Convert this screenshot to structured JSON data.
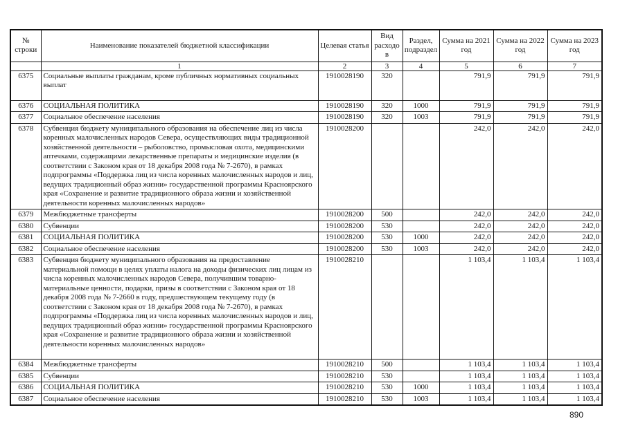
{
  "page": {
    "number": "890"
  },
  "table": {
    "headers": [
      "№ строки",
      "Наименование показателей бюджетной классификации",
      "Целевая статья",
      "Вид расходов",
      "Раздел, подраздел",
      "Сумма на 2021 год",
      "Сумма на 2022 год",
      "Сумма на 2023 год"
    ],
    "column_numbers": [
      "",
      "1",
      "2",
      "3",
      "4",
      "5",
      "6",
      "7"
    ],
    "rows": [
      {
        "num": "6375",
        "name": "Социальные выплаты гражданам, кроме публичных нормативных социальных выплат",
        "target_article": "1910028190",
        "expense_type": "320",
        "section": "",
        "sum_2021": "791,9",
        "sum_2022": "791,9",
        "sum_2023": "791,9",
        "pad": true
      },
      {
        "num": "6376",
        "name": "СОЦИАЛЬНАЯ ПОЛИТИКА",
        "target_article": "1910028190",
        "expense_type": "320",
        "section": "1000",
        "sum_2021": "791,9",
        "sum_2022": "791,9",
        "sum_2023": "791,9",
        "pad": false
      },
      {
        "num": "6377",
        "name": "Социальное обеспечение населения",
        "target_article": "1910028190",
        "expense_type": "320",
        "section": "1003",
        "sum_2021": "791,9",
        "sum_2022": "791,9",
        "sum_2023": "791,9",
        "pad": false
      },
      {
        "num": "6378",
        "name": "Субвенция бюджету муниципального образования на обеспечение лиц из числа коренных малочисленных народов Севера, осуществляющих виды традиционной хозяйственной деятельности – рыболовство, промысловая охота, медицинскими аптечками, содержащими лекарственные препараты и медицинские изделия (в соответствии с Законом края от 18 декабря 2008 года № 7-2670), в рамках подпрограммы «Поддержка лиц из числа коренных малочисленных народов и лиц, ведущих традиционный образ жизни» государственной программы Красноярского края «Сохранение и развитие традиционного образа жизни и хозяйственной деятельности коренных малочисленных народов»",
        "target_article": "1910028200",
        "expense_type": "",
        "section": "",
        "sum_2021": "242,0",
        "sum_2022": "242,0",
        "sum_2023": "242,0",
        "pad": false
      },
      {
        "num": "6379",
        "name": "Межбюджетные трансферты",
        "target_article": "1910028200",
        "expense_type": "500",
        "section": "",
        "sum_2021": "242,0",
        "sum_2022": "242,0",
        "sum_2023": "242,0",
        "pad": false
      },
      {
        "num": "6380",
        "name": "Субвенции",
        "target_article": "1910028200",
        "expense_type": "530",
        "section": "",
        "sum_2021": "242,0",
        "sum_2022": "242,0",
        "sum_2023": "242,0",
        "pad": false
      },
      {
        "num": "6381",
        "name": "СОЦИАЛЬНАЯ ПОЛИТИКА",
        "target_article": "1910028200",
        "expense_type": "530",
        "section": "1000",
        "sum_2021": "242,0",
        "sum_2022": "242,0",
        "sum_2023": "242,0",
        "pad": false
      },
      {
        "num": "6382",
        "name": "Социальное обеспечение населения",
        "target_article": "1910028200",
        "expense_type": "530",
        "section": "1003",
        "sum_2021": "242,0",
        "sum_2022": "242,0",
        "sum_2023": "242,0",
        "pad": false
      },
      {
        "num": "6383",
        "name": "Субвенция бюджету муниципального образования на предоставление материальной помощи в целях уплаты налога на доходы физических лиц лицам из числа коренных малочисленных народов Севера, получившим товарно-материальные ценности, подарки, призы в соответствии с Законом края от 18 декабря 2008 года № 7-2660 в году, предшествующем текущему году (в соответствии с Законом края от 18 декабря 2008 года № 7-2670), в рамках подпрограммы «Поддержка лиц из числа коренных малочисленных народов и лиц, ведущих традиционный образ жизни» государственной программы Красноярского края «Сохранение и развитие традиционного образа жизни и хозяйственной деятельности коренных малочисленных народов»",
        "target_article": "1910028210",
        "expense_type": "",
        "section": "",
        "sum_2021": "1 103,4",
        "sum_2022": "1 103,4",
        "sum_2023": "1 103,4",
        "pad": true
      },
      {
        "num": "6384",
        "name": "Межбюджетные трансферты",
        "target_article": "1910028210",
        "expense_type": "500",
        "section": "",
        "sum_2021": "1 103,4",
        "sum_2022": "1 103,4",
        "sum_2023": "1 103,4",
        "pad": false
      },
      {
        "num": "6385",
        "name": "Субвенции",
        "target_article": "1910028210",
        "expense_type": "530",
        "section": "",
        "sum_2021": "1 103,4",
        "sum_2022": "1 103,4",
        "sum_2023": "1 103,4",
        "pad": false
      },
      {
        "num": "6386",
        "name": "СОЦИАЛЬНАЯ ПОЛИТИКА",
        "target_article": "1910028210",
        "expense_type": "530",
        "section": "1000",
        "sum_2021": "1 103,4",
        "sum_2022": "1 103,4",
        "sum_2023": "1 103,4",
        "pad": false
      },
      {
        "num": "6387",
        "name": "Социальное обеспечение населения",
        "target_article": "1910028210",
        "expense_type": "530",
        "section": "1003",
        "sum_2021": "1 103,4",
        "sum_2022": "1 103,4",
        "sum_2023": "1 103,4",
        "pad": false
      }
    ]
  }
}
